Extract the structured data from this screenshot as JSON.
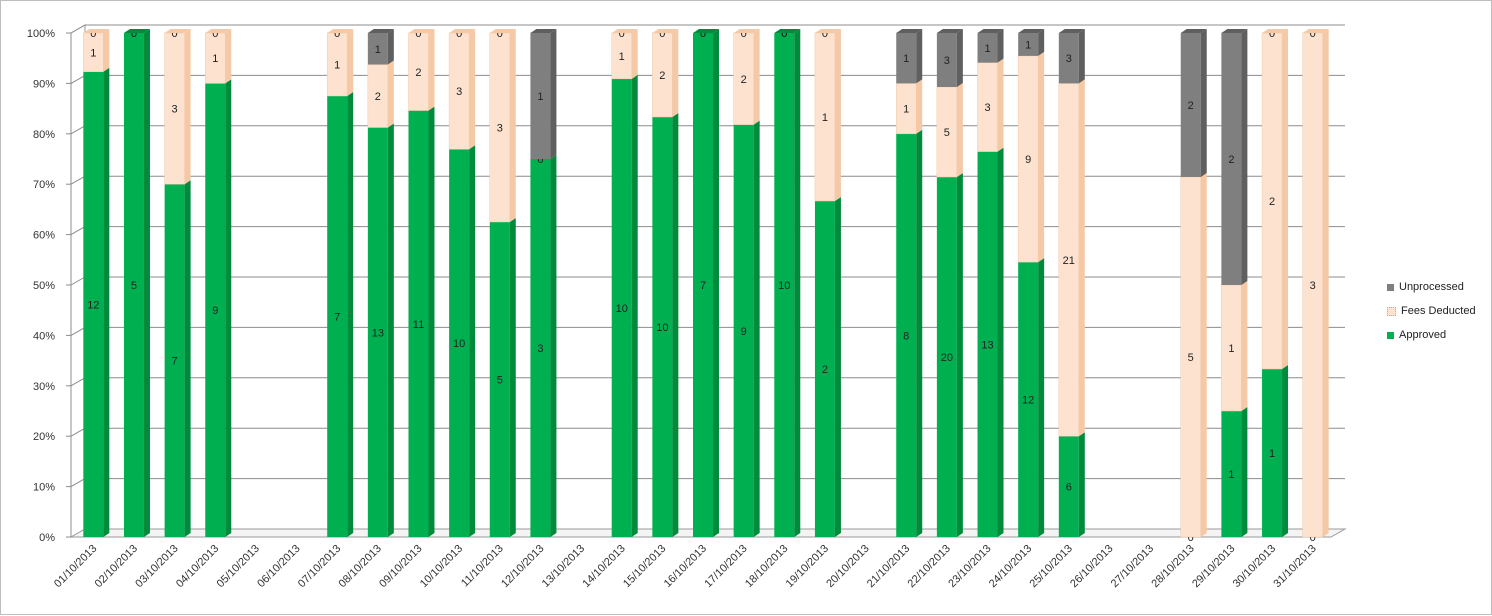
{
  "chart_data": {
    "type": "bar",
    "stacked": true,
    "percent_stacked": true,
    "three_d": true,
    "categories": [
      "01/10/2013",
      "02/10/2013",
      "03/10/2013",
      "04/10/2013",
      "05/10/2013",
      "06/10/2013",
      "07/10/2013",
      "08/10/2013",
      "09/10/2013",
      "10/10/2013",
      "11/10/2013",
      "12/10/2013",
      "13/10/2013",
      "14/10/2013",
      "15/10/2013",
      "16/10/2013",
      "17/10/2013",
      "18/10/2013",
      "19/10/2013",
      "20/10/2013",
      "21/10/2013",
      "22/10/2013",
      "23/10/2013",
      "24/10/2013",
      "25/10/2013",
      "26/10/2013",
      "27/10/2013",
      "28/10/2013",
      "29/10/2013",
      "30/10/2013",
      "31/10/2013"
    ],
    "series": [
      {
        "name": "Approved",
        "color": "#00b050",
        "side_color": "#008a3c",
        "values": [
          12,
          5,
          7,
          9,
          null,
          null,
          7,
          13,
          11,
          10,
          5,
          3,
          null,
          10,
          10,
          7,
          9,
          10,
          2,
          null,
          8,
          20,
          13,
          12,
          6,
          null,
          null,
          0,
          1,
          1,
          0
        ]
      },
      {
        "name": "Fees Deducted",
        "color": "#fde3cf",
        "side_color": "#f5c9a6",
        "values": [
          1,
          0,
          3,
          1,
          null,
          null,
          1,
          2,
          2,
          3,
          3,
          0,
          null,
          1,
          2,
          0,
          2,
          0,
          1,
          null,
          1,
          5,
          3,
          9,
          21,
          null,
          null,
          5,
          1,
          2,
          3
        ]
      },
      {
        "name": "Unprocessed",
        "color": "#7f7f7f",
        "side_color": "#5f5f5f",
        "values": [
          0,
          0,
          0,
          0,
          null,
          null,
          0,
          1,
          0,
          0,
          0,
          1,
          null,
          0,
          0,
          0,
          0,
          0,
          0,
          null,
          1,
          3,
          1,
          1,
          3,
          null,
          null,
          2,
          2,
          0,
          0
        ]
      }
    ],
    "y_ticks": [
      "0%",
      "10%",
      "20%",
      "30%",
      "40%",
      "50%",
      "60%",
      "70%",
      "80%",
      "90%",
      "100%"
    ],
    "ylim": [
      0,
      100
    ],
    "grid": true,
    "legend_position": "right",
    "legend_order": [
      "Unprocessed",
      "Fees Deducted",
      "Approved"
    ]
  }
}
